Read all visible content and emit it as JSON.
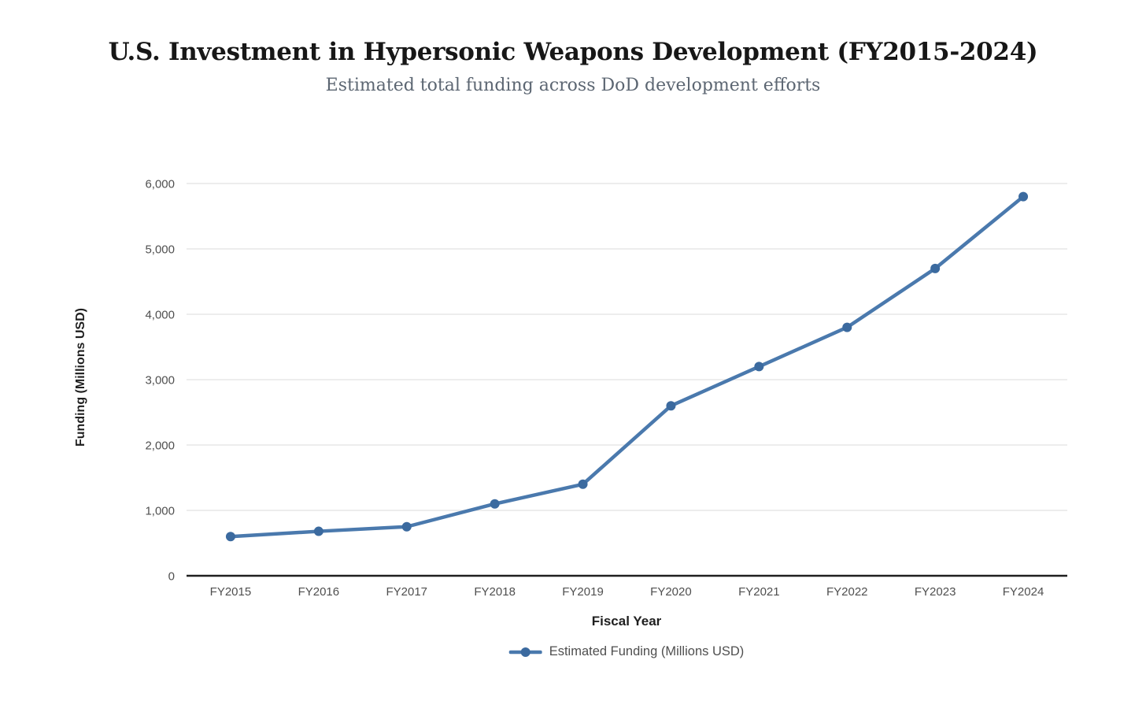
{
  "chart_data": {
    "type": "line",
    "title": "U.S. Investment in Hypersonic Weapons Development (FY2015-2024)",
    "subtitle": "Estimated total funding across DoD development efforts",
    "xlabel": "Fiscal Year",
    "ylabel": "Funding (Millions USD)",
    "categories": [
      "FY2015",
      "FY2016",
      "FY2017",
      "FY2018",
      "FY2019",
      "FY2020",
      "FY2021",
      "FY2022",
      "FY2023",
      "FY2024"
    ],
    "series": [
      {
        "name": "Estimated Funding (Millions USD)",
        "values": [
          600,
          680,
          750,
          1100,
          1400,
          2600,
          3200,
          3800,
          4700,
          5800
        ]
      }
    ],
    "ylim": [
      0,
      6000
    ],
    "yticks": [
      0,
      1000,
      2000,
      3000,
      4000,
      5000,
      6000
    ],
    "ytick_labels": [
      "0",
      "1,000",
      "2,000",
      "3,000",
      "4,000",
      "5,000",
      "6,000"
    ],
    "grid": "horizontal-only",
    "legend_position": "bottom",
    "marker": "circle",
    "colors": {
      "line": "#4a79ad",
      "marker": "#3b6a9f",
      "grid": "#e7e7e7",
      "axis": "#1f1f1f",
      "tick_text": "#4f4f4f",
      "title": "#171717",
      "subtitle": "#5c6672",
      "legend_text": "#4f4f4f",
      "background": "#ffffff"
    }
  }
}
